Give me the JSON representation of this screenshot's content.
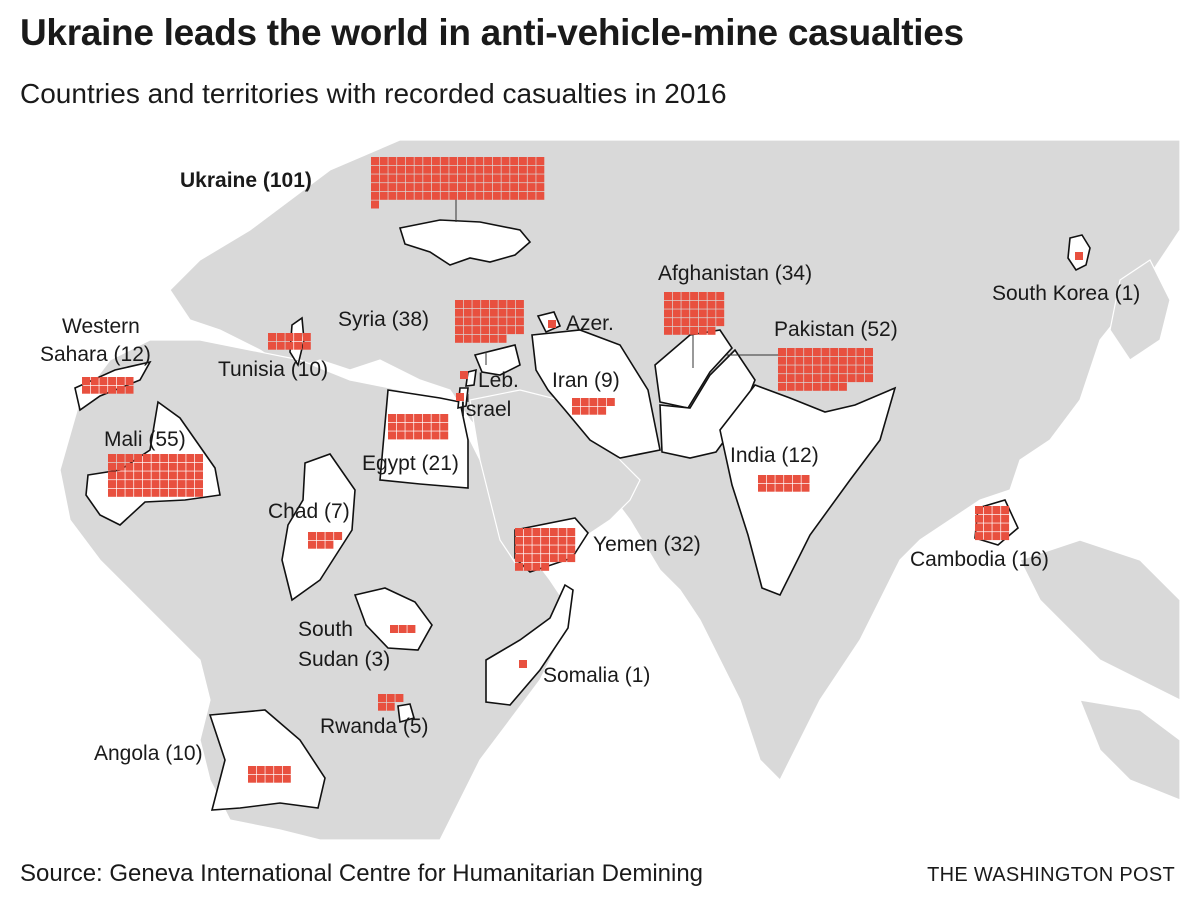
{
  "title": "Ukraine leads the world in anti-vehicle-mine casualties",
  "subtitle": "Countries and territories with recorded casualties in 2016",
  "source": "Source: Geneva International Centre for Humanitarian Demining",
  "credit": "THE WASHINGTON POST",
  "colors": {
    "square": "#e8503f",
    "land": "#d9d9d9",
    "water": "#ffffff",
    "highlight": "#ffffff"
  },
  "countries": [
    {
      "id": "ukraine",
      "label": "Ukraine (101)",
      "value": 101
    },
    {
      "id": "syria",
      "label": "Syria (38)",
      "value": 38
    },
    {
      "id": "azer",
      "label": "Azer.",
      "value": 1
    },
    {
      "id": "afghanistan",
      "label": "Afghanistan (34)",
      "value": 34
    },
    {
      "id": "pakistan",
      "label": "Pakistan (52)",
      "value": 52
    },
    {
      "id": "south-korea",
      "label": "South Korea (1)",
      "value": 1
    },
    {
      "id": "western-sahara",
      "label": "Western Sahara (12)",
      "label_lines": [
        "Western",
        "Sahara (12)"
      ],
      "value": 12
    },
    {
      "id": "tunisia",
      "label": "Tunisia (10)",
      "value": 10
    },
    {
      "id": "lebanon",
      "label": "Leb.",
      "value": 1
    },
    {
      "id": "israel",
      "label": "Israel",
      "value": 1
    },
    {
      "id": "iran",
      "label": "Iran (9)",
      "value": 9
    },
    {
      "id": "mali",
      "label": "Mali (55)",
      "value": 55
    },
    {
      "id": "egypt",
      "label": "Egypt (21)",
      "value": 21
    },
    {
      "id": "india",
      "label": "India (12)",
      "value": 12
    },
    {
      "id": "chad",
      "label": "Chad (7)",
      "value": 7
    },
    {
      "id": "yemen",
      "label": "Yemen (32)",
      "value": 32
    },
    {
      "id": "cambodia",
      "label": "Cambodia (16)",
      "value": 16
    },
    {
      "id": "south-sudan",
      "label": "South Sudan (3)",
      "label_lines": [
        "South",
        "Sudan (3)"
      ],
      "value": 3
    },
    {
      "id": "somalia",
      "label": "Somalia (1)",
      "value": 1
    },
    {
      "id": "rwanda",
      "label": "Rwanda (5)",
      "value": 5
    },
    {
      "id": "angola",
      "label": "Angola (10)",
      "value": 10
    }
  ]
}
